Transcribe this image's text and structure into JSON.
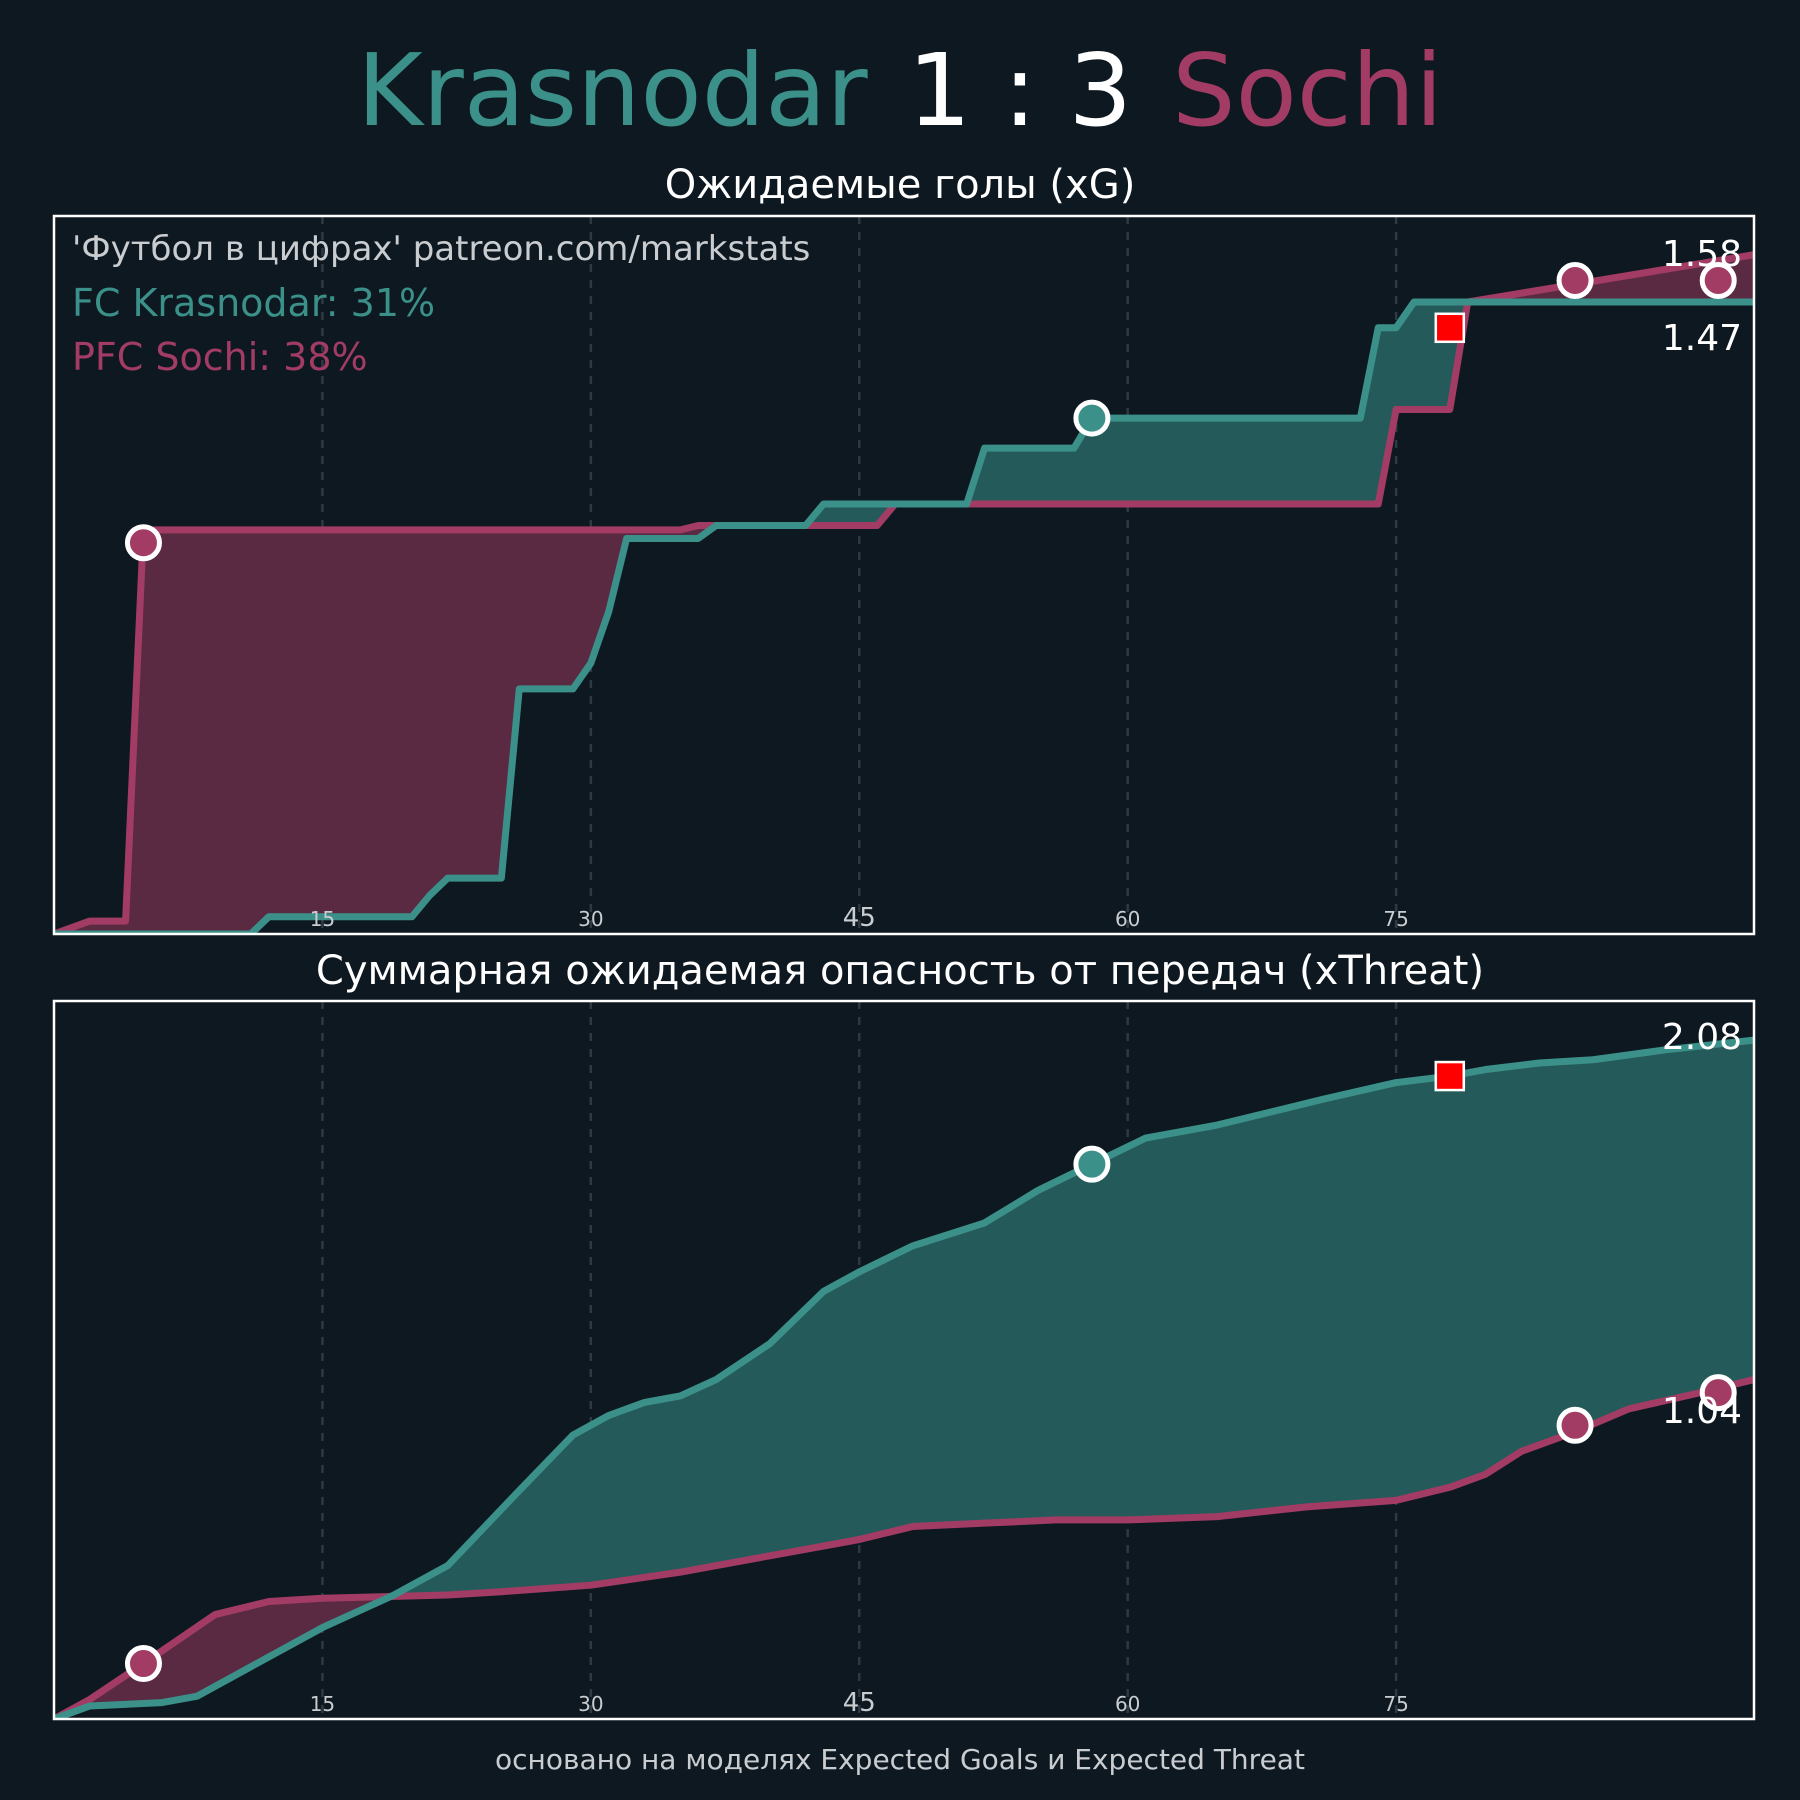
{
  "header": {
    "home_team": "Krasnodar",
    "score": "1 : 3",
    "away_team": "Sochi"
  },
  "colors": {
    "background": "#0e1821",
    "home": "#3b9189",
    "away": "#a23c64",
    "home_fill": "#255a5a",
    "away_fill": "#5a2a43",
    "red_card": "#ff0000",
    "grid": "#2e3944"
  },
  "footer": "основано на моделях Expected Goals и Expected Threat",
  "chart_data": [
    {
      "type": "line",
      "title": "Ожидаемые голы (xG)",
      "watermark": "'Футбол в цифрах' patreon.com/markstats",
      "legend": [
        {
          "label": "FC Krasnodar: 31%",
          "team": "home"
        },
        {
          "label": "PFC Sochi: 38%",
          "team": "away"
        }
      ],
      "x_ticks": [
        "15",
        "30",
        "45",
        "60",
        "75"
      ],
      "x_tick_values": [
        15,
        30,
        45,
        60,
        75
      ],
      "xlim": [
        0,
        95
      ],
      "ylim": [
        0,
        1.67
      ],
      "grid": true,
      "end_labels": {
        "away": "1.58",
        "home": "1.47"
      },
      "series": [
        {
          "name": "FC Krasnodar",
          "team": "home",
          "x": [
            0,
            11,
            12,
            20,
            21,
            22,
            25,
            26,
            27,
            29,
            30,
            31,
            32,
            36,
            37,
            42,
            43,
            51,
            52,
            57,
            58,
            73,
            74,
            75,
            76,
            95
          ],
          "y": [
            0,
            0,
            0.04,
            0.04,
            0.09,
            0.13,
            0.13,
            0.57,
            0.57,
            0.57,
            0.63,
            0.75,
            0.92,
            0.92,
            0.95,
            0.95,
            1.0,
            1.0,
            1.13,
            1.13,
            1.2,
            1.2,
            1.41,
            1.41,
            1.47,
            1.47
          ]
        },
        {
          "name": "PFC Sochi",
          "team": "away",
          "x": [
            0,
            2,
            4,
            5,
            35,
            36,
            46,
            47,
            74,
            75,
            78,
            79,
            95
          ],
          "y": [
            0,
            0.03,
            0.03,
            0.94,
            0.94,
            0.95,
            0.95,
            1.0,
            1.0,
            1.22,
            1.22,
            1.47,
            1.58
          ]
        }
      ],
      "goals": [
        {
          "team": "away",
          "minute": 5,
          "value": 0.91
        },
        {
          "team": "home",
          "minute": 58,
          "value": 1.2
        },
        {
          "team": "away",
          "minute": 85,
          "value": 1.52
        },
        {
          "team": "away",
          "minute": 93,
          "value": 1.52
        }
      ],
      "red_cards": [
        {
          "minute": 78,
          "value": 1.41
        }
      ]
    },
    {
      "type": "line",
      "title": "Суммарная ожидаемая опасность от передач (xThreat)",
      "x_ticks": [
        "15",
        "30",
        "45",
        "60",
        "75"
      ],
      "x_tick_values": [
        15,
        30,
        45,
        60,
        75
      ],
      "xlim": [
        0,
        95
      ],
      "ylim": [
        0,
        2.2
      ],
      "grid": true,
      "end_labels": {
        "home": "2.08",
        "away": "1.04"
      },
      "series": [
        {
          "name": "FC Krasnodar",
          "team": "home",
          "x": [
            0,
            2,
            6,
            8,
            12,
            15,
            19,
            22,
            26,
            29,
            31,
            33,
            35,
            37,
            40,
            43,
            45,
            48,
            52,
            55,
            58,
            61,
            65,
            68,
            71,
            75,
            78,
            80,
            83,
            86,
            90,
            95
          ],
          "y": [
            0,
            0.04,
            0.05,
            0.07,
            0.19,
            0.28,
            0.38,
            0.47,
            0.7,
            0.87,
            0.93,
            0.97,
            0.99,
            1.04,
            1.15,
            1.31,
            1.37,
            1.45,
            1.52,
            1.62,
            1.7,
            1.78,
            1.82,
            1.86,
            1.9,
            1.95,
            1.97,
            1.99,
            2.01,
            2.02,
            2.05,
            2.08
          ]
        },
        {
          "name": "PFC Sochi",
          "team": "away",
          "x": [
            0,
            2,
            5,
            9,
            12,
            15,
            22,
            25,
            30,
            35,
            40,
            43,
            45,
            48,
            52,
            56,
            60,
            65,
            70,
            75,
            78,
            80,
            82,
            85,
            88,
            92,
            95
          ],
          "y": [
            0,
            0.06,
            0.17,
            0.32,
            0.36,
            0.37,
            0.38,
            0.39,
            0.41,
            0.45,
            0.5,
            0.53,
            0.55,
            0.59,
            0.6,
            0.61,
            0.61,
            0.62,
            0.65,
            0.67,
            0.71,
            0.75,
            0.82,
            0.88,
            0.95,
            1.0,
            1.04
          ]
        }
      ],
      "goals": [
        {
          "team": "away",
          "minute": 5,
          "value": 0.17
        },
        {
          "team": "home",
          "minute": 58,
          "value": 1.7
        },
        {
          "team": "away",
          "minute": 85,
          "value": 0.9
        },
        {
          "team": "away",
          "minute": 93,
          "value": 1.0
        }
      ],
      "red_cards": [
        {
          "minute": 78,
          "value": 1.97
        }
      ]
    }
  ]
}
